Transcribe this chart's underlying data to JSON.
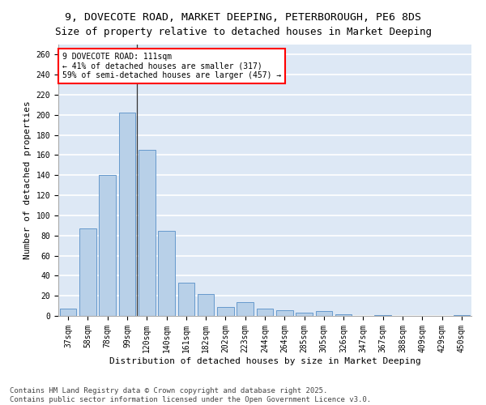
{
  "title1": "9, DOVECOTE ROAD, MARKET DEEPING, PETERBOROUGH, PE6 8DS",
  "title2": "Size of property relative to detached houses in Market Deeping",
  "xlabel": "Distribution of detached houses by size in Market Deeping",
  "ylabel": "Number of detached properties",
  "categories": [
    "37sqm",
    "58sqm",
    "78sqm",
    "99sqm",
    "120sqm",
    "140sqm",
    "161sqm",
    "182sqm",
    "202sqm",
    "223sqm",
    "244sqm",
    "264sqm",
    "285sqm",
    "305sqm",
    "326sqm",
    "347sqm",
    "367sqm",
    "388sqm",
    "409sqm",
    "429sqm",
    "450sqm"
  ],
  "values": [
    7,
    87,
    140,
    202,
    165,
    85,
    33,
    22,
    9,
    14,
    7,
    6,
    3,
    5,
    2,
    0,
    1,
    0,
    0,
    0,
    1
  ],
  "bar_color": "#b8d0e8",
  "bar_edge_color": "#6699cc",
  "highlight_line_color": "#333333",
  "annotation_text": "9 DOVECOTE ROAD: 111sqm\n← 41% of detached houses are smaller (317)\n59% of semi-detached houses are larger (457) →",
  "annotation_box_color": "white",
  "annotation_box_edge": "red",
  "ylim": [
    0,
    270
  ],
  "yticks": [
    0,
    20,
    40,
    60,
    80,
    100,
    120,
    140,
    160,
    180,
    200,
    220,
    240,
    260
  ],
  "background_color": "#dde8f5",
  "grid_color": "white",
  "footer1": "Contains HM Land Registry data © Crown copyright and database right 2025.",
  "footer2": "Contains public sector information licensed under the Open Government Licence v3.0.",
  "title_fontsize": 9.5,
  "subtitle_fontsize": 9,
  "axis_label_fontsize": 8,
  "tick_fontsize": 7,
  "annotation_fontsize": 7,
  "footer_fontsize": 6.5
}
